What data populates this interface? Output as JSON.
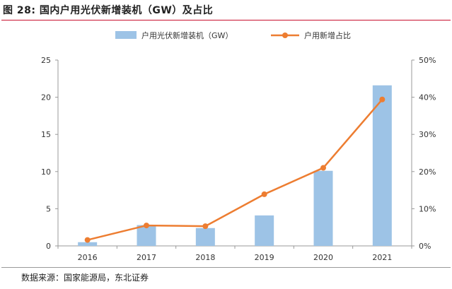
{
  "figure": {
    "title": "图 28: 国内户用光伏新增装机（GW）及占比",
    "source": "数据来源：国家能源局，东北证券"
  },
  "chart_data": {
    "type": "bar",
    "categories": [
      "2016",
      "2017",
      "2018",
      "2019",
      "2020",
      "2021"
    ],
    "series": [
      {
        "name": "户用光伏新增装机（GW）",
        "type": "bar",
        "axis": "left",
        "values": [
          0.5,
          2.8,
          2.4,
          4.1,
          10.1,
          21.6
        ],
        "color": "#9dc3e6"
      },
      {
        "name": "户用新增占比",
        "type": "line",
        "axis": "right",
        "values": [
          0.016,
          0.055,
          0.053,
          0.139,
          0.21,
          0.394
        ],
        "color": "#ed7d31"
      }
    ],
    "left_axis": {
      "min": 0,
      "max": 25,
      "ticks": [
        "0",
        "5",
        "10",
        "15",
        "20",
        "25"
      ]
    },
    "right_axis": {
      "min": 0,
      "max": 0.5,
      "ticks": [
        "0%",
        "10%",
        "20%",
        "30%",
        "40%",
        "50%"
      ]
    },
    "legend_position": "top"
  }
}
